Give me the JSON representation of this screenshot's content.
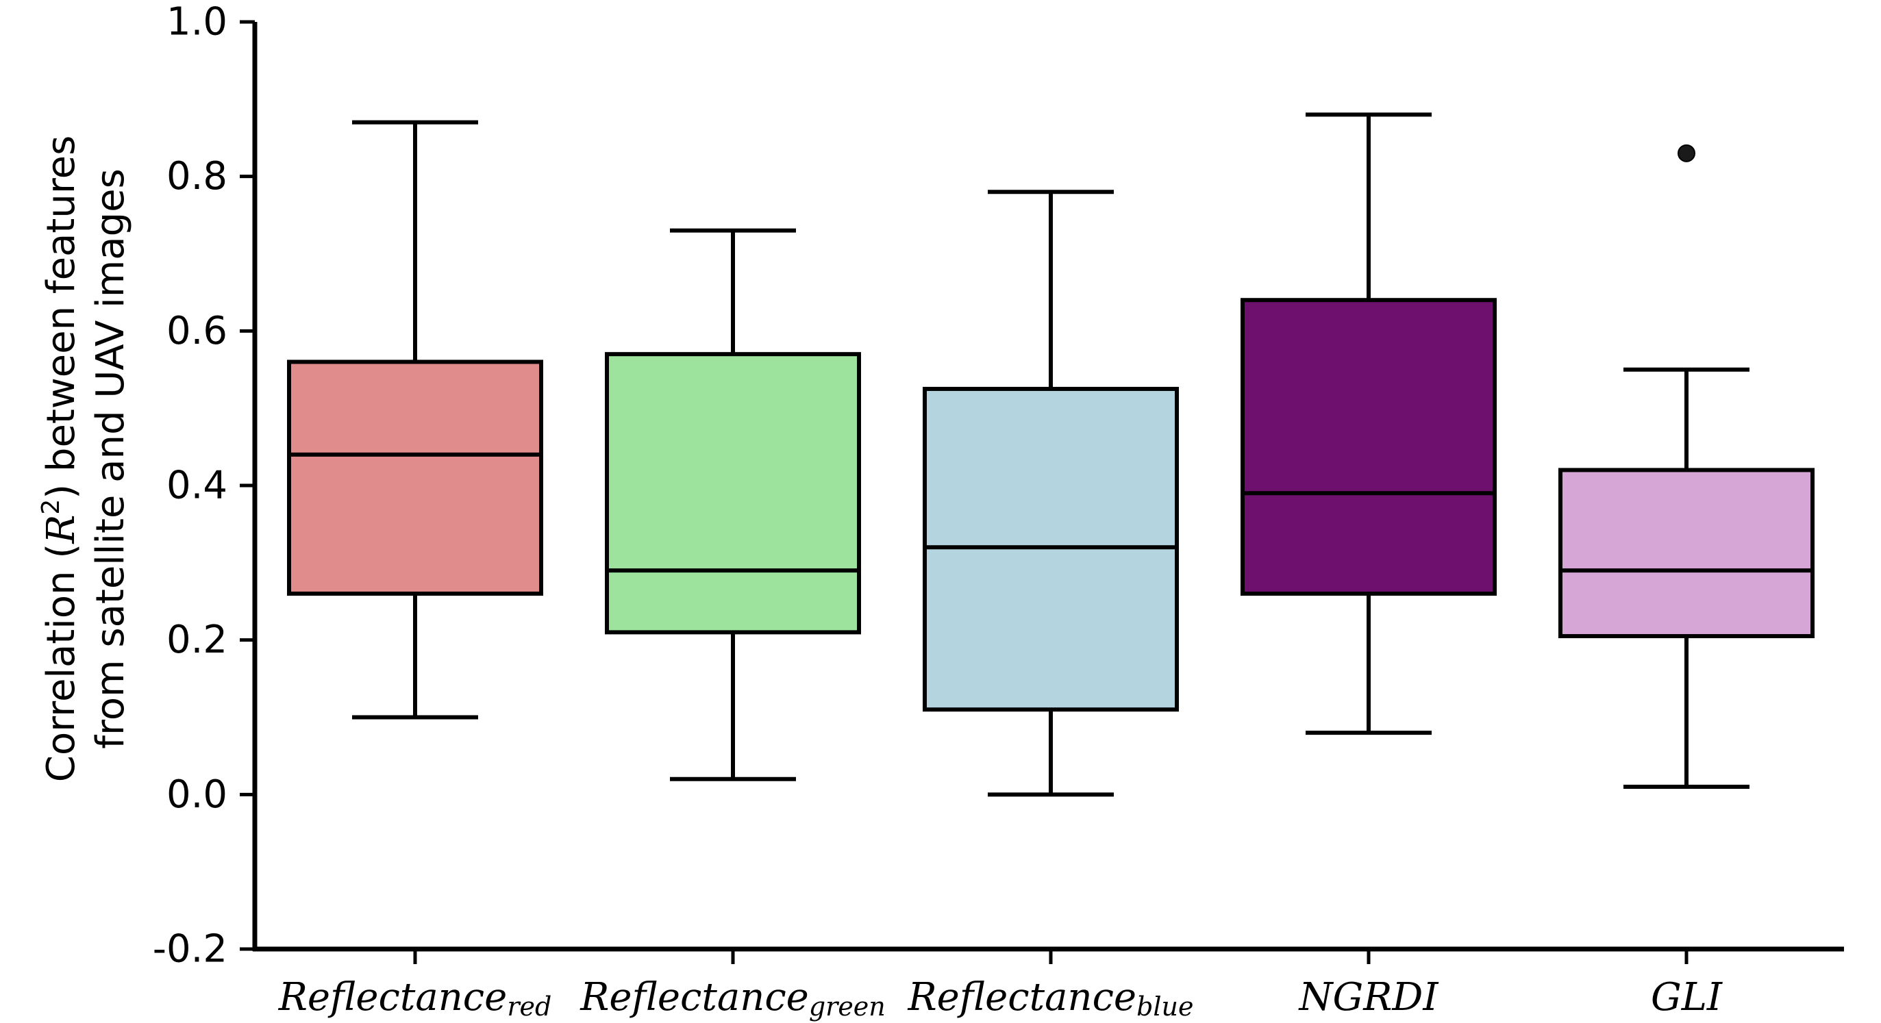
{
  "chart_data": {
    "type": "box",
    "ylabel_lines": [
      [
        "Correlation (",
        "R",
        "2",
        ") between features"
      ],
      [
        "from satellite and UAV images"
      ]
    ],
    "ylim": [
      -0.2,
      1.0
    ],
    "yticks": [
      1.0,
      0.8,
      0.6,
      0.4,
      0.2,
      0.0,
      -0.2
    ],
    "ytick_labels": [
      "1.0",
      "0.8",
      "0.6",
      "0.4",
      "0.2",
      "0.0",
      "-0.2"
    ],
    "categories": [
      {
        "main": "Reflectance",
        "sub": "red"
      },
      {
        "main": "Reflectance",
        "sub": "green"
      },
      {
        "main": "Reflectance",
        "sub": "blue"
      },
      {
        "main": "NGRDI",
        "sub": ""
      },
      {
        "main": "GLI",
        "sub": ""
      }
    ],
    "boxes": [
      {
        "whisker_low": 0.1,
        "q1": 0.26,
        "median": 0.44,
        "q3": 0.56,
        "whisker_high": 0.87,
        "outliers": [],
        "color": "#e18c8c"
      },
      {
        "whisker_low": 0.02,
        "q1": 0.21,
        "median": 0.29,
        "q3": 0.57,
        "whisker_high": 0.73,
        "outliers": [],
        "color": "#9de29d"
      },
      {
        "whisker_low": 0.0,
        "q1": 0.11,
        "median": 0.32,
        "q3": 0.525,
        "whisker_high": 0.78,
        "outliers": [],
        "color": "#b4d5df"
      },
      {
        "whisker_low": 0.08,
        "q1": 0.26,
        "median": 0.39,
        "q3": 0.64,
        "whisker_high": 0.88,
        "outliers": [],
        "color": "#6e106e"
      },
      {
        "whisker_low": 0.01,
        "q1": 0.205,
        "median": 0.29,
        "q3": 0.42,
        "whisker_high": 0.55,
        "outliers": [
          0.83
        ],
        "color": "#d6a6d6"
      }
    ],
    "grid": false,
    "legend": "none"
  }
}
